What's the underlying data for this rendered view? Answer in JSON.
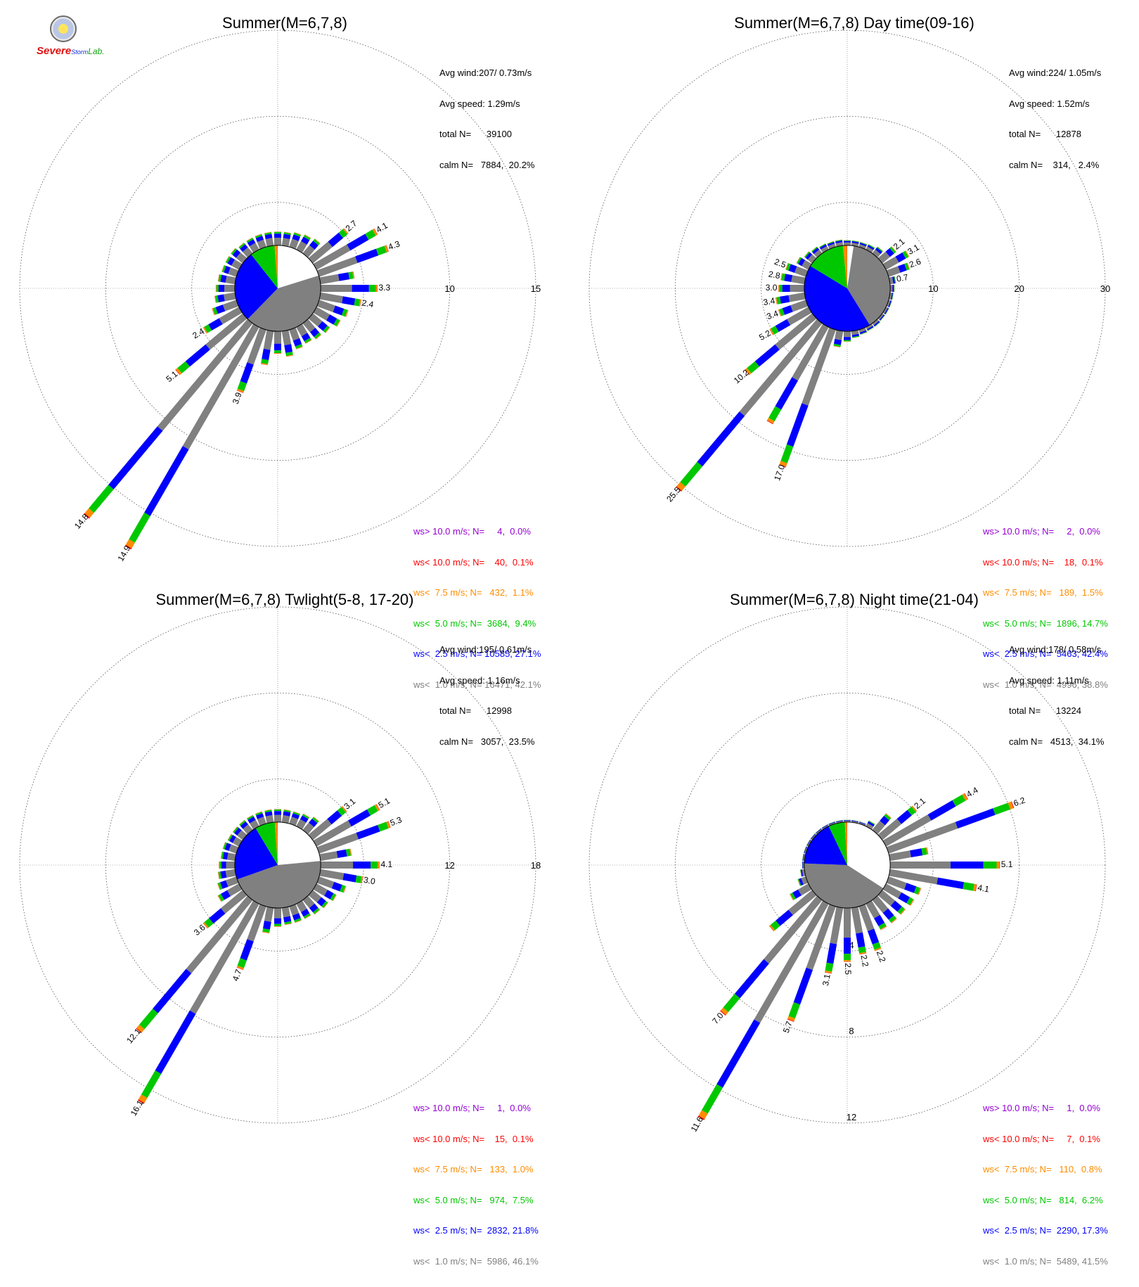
{
  "logo": {
    "lab_name_a": "Severe",
    "lab_name_b": "Storm",
    "lab_name_c": "Lab."
  },
  "colors": {
    "calm": "#ffffff",
    "lt1": "#808080",
    "lt2_5": "#0000ff",
    "lt5": "#00c800",
    "lt7_5": "#ff8c00",
    "lt10": "#ff0000",
    "gt10": "#9400d3"
  },
  "panels": [
    {
      "title": "Summer(M=6,7,8)",
      "stats": [
        "Avg wind:207/ 0.73m/s",
        "Avg speed: 1.29m/s",
        "total N=      39100",
        "calm N=   7884,  20.2%"
      ],
      "legend": [
        {
          "text": "ws> 10.0 m/s; N=     4,  0.0%",
          "color": "#9400d3"
        },
        {
          "text": "ws< 10.0 m/s; N=    40,  0.1%",
          "color": "#ff0000"
        },
        {
          "text": "ws<  7.5 m/s; N=   432,  1.1%",
          "color": "#ff8c00"
        },
        {
          "text": "ws<  5.0 m/s; N=  3684,  9.4%",
          "color": "#00c800"
        },
        {
          "text": "ws<  2.5 m/s; N= 10585, 27.1%",
          "color": "#0000ff"
        },
        {
          "text": "ws<  1.0 m/s; N= 16471, 42.1%",
          "color": "#808080"
        }
      ]
    },
    {
      "title": "Summer(M=6,7,8) Day time(09-16)",
      "stats": [
        "Avg wind:224/ 1.05m/s",
        "Avg speed: 1.52m/s",
        "total N=      12878",
        "calm N=    314,   2.4%"
      ],
      "legend": [
        {
          "text": "ws> 10.0 m/s; N=     2,  0.0%",
          "color": "#9400d3"
        },
        {
          "text": "ws< 10.0 m/s; N=    18,  0.1%",
          "color": "#ff0000"
        },
        {
          "text": "ws<  7.5 m/s; N=   189,  1.5%",
          "color": "#ff8c00"
        },
        {
          "text": "ws<  5.0 m/s; N=  1896, 14.7%",
          "color": "#00c800"
        },
        {
          "text": "ws<  2.5 m/s; N=  5463, 42.4%",
          "color": "#0000ff"
        },
        {
          "text": "ws<  1.0 m/s; N=  4996, 38.8%",
          "color": "#808080"
        }
      ]
    },
    {
      "title": "Summer(M=6,7,8) Twlight(5-8, 17-20)",
      "stats": [
        "Avg wind:195/ 0.61m/s",
        "Avg speed: 1.16m/s",
        "total N=      12998",
        "calm N=   3057,  23.5%"
      ],
      "legend": [
        {
          "text": "ws> 10.0 m/s; N=     1,  0.0%",
          "color": "#9400d3"
        },
        {
          "text": "ws< 10.0 m/s; N=    15,  0.1%",
          "color": "#ff0000"
        },
        {
          "text": "ws<  7.5 m/s; N=   133,  1.0%",
          "color": "#ff8c00"
        },
        {
          "text": "ws<  5.0 m/s; N=   974,  7.5%",
          "color": "#00c800"
        },
        {
          "text": "ws<  2.5 m/s; N=  2832, 21.8%",
          "color": "#0000ff"
        },
        {
          "text": "ws<  1.0 m/s; N=  5986, 46.1%",
          "color": "#808080"
        }
      ]
    },
    {
      "title": "Summer(M=6,7,8) Night time(21-04)",
      "stats": [
        "Avg wind:178/ 0.58m/s",
        "Avg speed: 1.11m/s",
        "total N=      13224",
        "calm N=   4513,  34.1%"
      ],
      "legend": [
        {
          "text": "ws> 10.0 m/s; N=     1,  0.0%",
          "color": "#9400d3"
        },
        {
          "text": "ws< 10.0 m/s; N=     7,  0.1%",
          "color": "#ff0000"
        },
        {
          "text": "ws<  7.5 m/s; N=   110,  0.8%",
          "color": "#ff8c00"
        },
        {
          "text": "ws<  5.0 m/s; N=   814,  6.2%",
          "color": "#00c800"
        },
        {
          "text": "ws<  2.5 m/s; N=  2290, 17.3%",
          "color": "#0000ff"
        },
        {
          "text": "ws<  1.0 m/s; N=  5489, 41.5%",
          "color": "#808080"
        }
      ]
    }
  ],
  "chart_data": [
    {
      "type": "wind-rose",
      "title": "Summer(M=6,7,8)",
      "radial_ticks": [
        5,
        10,
        15
      ],
      "radial_tick_placement": "east",
      "calm_radius": 2.5,
      "calm_pie_percent": [
        20.2,
        42.1,
        27.1,
        9.4,
        1.1,
        0.1
      ],
      "direction_bins": 36,
      "petals": [
        {
          "dir": 0,
          "total": 0.8
        },
        {
          "dir": 10,
          "total": 0.8
        },
        {
          "dir": 20,
          "total": 0.9
        },
        {
          "dir": 30,
          "total": 1.0
        },
        {
          "dir": 40,
          "total": 1.1
        },
        {
          "dir": 50,
          "total": 2.7,
          "label": "2.7"
        },
        {
          "dir": 60,
          "total": 4.1,
          "label": "4.1"
        },
        {
          "dir": 70,
          "total": 4.3,
          "label": "4.3"
        },
        {
          "dir": 80,
          "total": 2.0
        },
        {
          "dir": 90,
          "total": 3.3,
          "label": "3.3"
        },
        {
          "dir": 100,
          "total": 2.4,
          "label": "2.4"
        },
        {
          "dir": 110,
          "total": 1.8
        },
        {
          "dir": 120,
          "total": 1.6
        },
        {
          "dir": 130,
          "total": 1.3
        },
        {
          "dir": 140,
          "total": 1.2
        },
        {
          "dir": 150,
          "total": 1.1
        },
        {
          "dir": 160,
          "total": 1.2
        },
        {
          "dir": 170,
          "total": 1.5
        },
        {
          "dir": 180,
          "total": 1.3
        },
        {
          "dir": 190,
          "total": 2.0
        },
        {
          "dir": 200,
          "total": 3.9,
          "label": "3.9"
        },
        {
          "dir": 210,
          "total": 14.9,
          "label": "14.9"
        },
        {
          "dir": 220,
          "total": 14.8,
          "label": "14.8"
        },
        {
          "dir": 230,
          "total": 5.1,
          "label": "5.1"
        },
        {
          "dir": 240,
          "total": 2.4,
          "label": "2.4"
        },
        {
          "dir": 250,
          "total": 1.5
        },
        {
          "dir": 260,
          "total": 1.2
        },
        {
          "dir": 270,
          "total": 1.1
        },
        {
          "dir": 280,
          "total": 1.0
        },
        {
          "dir": 290,
          "total": 0.9
        },
        {
          "dir": 300,
          "total": 0.9
        },
        {
          "dir": 310,
          "total": 0.9
        },
        {
          "dir": 320,
          "total": 0.8
        },
        {
          "dir": 330,
          "total": 0.8
        },
        {
          "dir": 340,
          "total": 0.8
        },
        {
          "dir": 350,
          "total": 0.8
        }
      ]
    },
    {
      "type": "wind-rose",
      "title": "Summer(M=6,7,8) Day time(09-16)",
      "radial_ticks": [
        10,
        20,
        30
      ],
      "radial_tick_placement": "east",
      "calm_radius": 5,
      "calm_pie_percent": [
        2.4,
        38.8,
        42.4,
        14.7,
        1.5,
        0.1
      ],
      "direction_bins": 36,
      "petals": [
        {
          "dir": 0,
          "total": 0.6
        },
        {
          "dir": 10,
          "total": 0.6
        },
        {
          "dir": 20,
          "total": 0.6
        },
        {
          "dir": 30,
          "total": 0.7
        },
        {
          "dir": 40,
          "total": 1.0
        },
        {
          "dir": 50,
          "total": 2.1,
          "label": "2.1"
        },
        {
          "dir": 60,
          "total": 3.1,
          "label": "3.1"
        },
        {
          "dir": 70,
          "total": 2.6,
          "label": "2.6"
        },
        {
          "dir": 80,
          "total": 0.7,
          "label": "0.7"
        },
        {
          "dir": 90,
          "total": 0.5
        },
        {
          "dir": 100,
          "total": 0.4
        },
        {
          "dir": 110,
          "total": 0.4
        },
        {
          "dir": 120,
          "total": 0.4
        },
        {
          "dir": 130,
          "total": 0.4
        },
        {
          "dir": 140,
          "total": 0.5
        },
        {
          "dir": 150,
          "total": 0.5
        },
        {
          "dir": 160,
          "total": 0.6
        },
        {
          "dir": 170,
          "total": 0.8
        },
        {
          "dir": 180,
          "total": 1.2
        },
        {
          "dir": 190,
          "total": 1.9
        },
        {
          "dir": 200,
          "total": 17.0,
          "label": "17.0"
        },
        {
          "dir": 210,
          "total": 13.0
        },
        {
          "dir": 220,
          "total": 25.5,
          "label": "25.5"
        },
        {
          "dir": 230,
          "total": 10.2,
          "label": "10.2"
        },
        {
          "dir": 240,
          "total": 5.2,
          "label": "5.2"
        },
        {
          "dir": 250,
          "total": 3.4,
          "label": "3.4"
        },
        {
          "dir": 260,
          "total": 3.4,
          "label": "3.4"
        },
        {
          "dir": 270,
          "total": 3.0,
          "label": "3.0"
        },
        {
          "dir": 280,
          "total": 2.8,
          "label": "2.8"
        },
        {
          "dir": 290,
          "total": 2.5,
          "label": "2.5"
        },
        {
          "dir": 300,
          "total": 1.6
        },
        {
          "dir": 310,
          "total": 1.2
        },
        {
          "dir": 320,
          "total": 1.0
        },
        {
          "dir": 330,
          "total": 0.8
        },
        {
          "dir": 340,
          "total": 0.7
        },
        {
          "dir": 350,
          "total": 0.7
        }
      ]
    },
    {
      "type": "wind-rose",
      "title": "Summer(M=6,7,8) Twlight(5-8, 17-20)",
      "radial_ticks": [
        6,
        12,
        18
      ],
      "radial_tick_placement": "east",
      "calm_radius": 3,
      "calm_pie_percent": [
        23.5,
        46.1,
        21.8,
        7.5,
        1.0,
        0.1
      ],
      "direction_bins": 36,
      "petals": [
        {
          "dir": 0,
          "total": 0.9
        },
        {
          "dir": 10,
          "total": 0.9
        },
        {
          "dir": 20,
          "total": 0.9
        },
        {
          "dir": 30,
          "total": 1.0
        },
        {
          "dir": 40,
          "total": 1.2
        },
        {
          "dir": 50,
          "total": 3.1,
          "label": "3.1"
        },
        {
          "dir": 60,
          "total": 5.1,
          "label": "5.1"
        },
        {
          "dir": 70,
          "total": 5.3,
          "label": "5.3"
        },
        {
          "dir": 80,
          "total": 2.2
        },
        {
          "dir": 90,
          "total": 4.1,
          "label": "4.1"
        },
        {
          "dir": 100,
          "total": 3.0,
          "label": "3.0"
        },
        {
          "dir": 110,
          "total": 2.0
        },
        {
          "dir": 120,
          "total": 1.6
        },
        {
          "dir": 130,
          "total": 1.4
        },
        {
          "dir": 140,
          "total": 1.3
        },
        {
          "dir": 150,
          "total": 1.2
        },
        {
          "dir": 160,
          "total": 1.2
        },
        {
          "dir": 170,
          "total": 1.2
        },
        {
          "dir": 180,
          "total": 1.3
        },
        {
          "dir": 190,
          "total": 1.8
        },
        {
          "dir": 200,
          "total": 4.7,
          "label": "4.7"
        },
        {
          "dir": 210,
          "total": 16.1,
          "label": "16.1"
        },
        {
          "dir": 220,
          "total": 12.1,
          "label": "12.1"
        },
        {
          "dir": 230,
          "total": 3.6,
          "label": "3.6"
        },
        {
          "dir": 240,
          "total": 1.7
        },
        {
          "dir": 250,
          "total": 1.4
        },
        {
          "dir": 260,
          "total": 1.2
        },
        {
          "dir": 270,
          "total": 1.1
        },
        {
          "dir": 280,
          "total": 1.0
        },
        {
          "dir": 290,
          "total": 1.0
        },
        {
          "dir": 300,
          "total": 0.9
        },
        {
          "dir": 310,
          "total": 0.9
        },
        {
          "dir": 320,
          "total": 0.9
        },
        {
          "dir": 330,
          "total": 0.9
        },
        {
          "dir": 340,
          "total": 0.9
        },
        {
          "dir": 350,
          "total": 0.9
        }
      ]
    },
    {
      "type": "wind-rose",
      "title": "Summer(M=6,7,8) Night time(21-04)",
      "radial_ticks": [
        4,
        8,
        12
      ],
      "radial_tick_placement": "south",
      "calm_radius": 2,
      "calm_pie_percent": [
        34.1,
        41.5,
        17.3,
        6.2,
        0.8,
        0.1
      ],
      "direction_bins": 36,
      "petals": [
        {
          "dir": 0,
          "total": 0.1
        },
        {
          "dir": 10,
          "total": 0.1
        },
        {
          "dir": 20,
          "total": 0.1
        },
        {
          "dir": 30,
          "total": 0.3
        },
        {
          "dir": 40,
          "total": 1.0
        },
        {
          "dir": 50,
          "total": 2.1,
          "label": "2.1"
        },
        {
          "dir": 60,
          "total": 4.4,
          "label": "4.4"
        },
        {
          "dir": 70,
          "total": 6.2,
          "label": "6.2"
        },
        {
          "dir": 80,
          "total": 1.8
        },
        {
          "dir": 90,
          "total": 5.1,
          "label": "5.1"
        },
        {
          "dir": 100,
          "total": 4.1,
          "label": "4.1"
        },
        {
          "dir": 110,
          "total": 1.6
        },
        {
          "dir": 120,
          "total": 1.5
        },
        {
          "dir": 130,
          "total": 1.4
        },
        {
          "dir": 140,
          "total": 1.4
        },
        {
          "dir": 150,
          "total": 1.4
        },
        {
          "dir": 160,
          "total": 2.2,
          "label": "2.2"
        },
        {
          "dir": 170,
          "total": 2.2,
          "label": "2.2"
        },
        {
          "dir": 180,
          "total": 2.5,
          "label": "2.5"
        },
        {
          "dir": 190,
          "total": 3.1,
          "label": "3.1"
        },
        {
          "dir": 200,
          "total": 5.7,
          "label": "5.7"
        },
        {
          "dir": 210,
          "total": 11.6,
          "label": "11.6"
        },
        {
          "dir": 220,
          "total": 7.0,
          "label": "7.0"
        },
        {
          "dir": 230,
          "total": 2.6
        },
        {
          "dir": 240,
          "total": 1.0
        },
        {
          "dir": 250,
          "total": 0.4
        },
        {
          "dir": 260,
          "total": 0.2
        },
        {
          "dir": 270,
          "total": 0.1
        },
        {
          "dir": 280,
          "total": 0.1
        },
        {
          "dir": 290,
          "total": 0.1
        },
        {
          "dir": 300,
          "total": 0.1
        },
        {
          "dir": 310,
          "total": 0.1
        },
        {
          "dir": 320,
          "total": 0.1
        },
        {
          "dir": 330,
          "total": 0.1
        },
        {
          "dir": 340,
          "total": 0.1
        },
        {
          "dir": 350,
          "total": 0.1
        }
      ]
    }
  ]
}
